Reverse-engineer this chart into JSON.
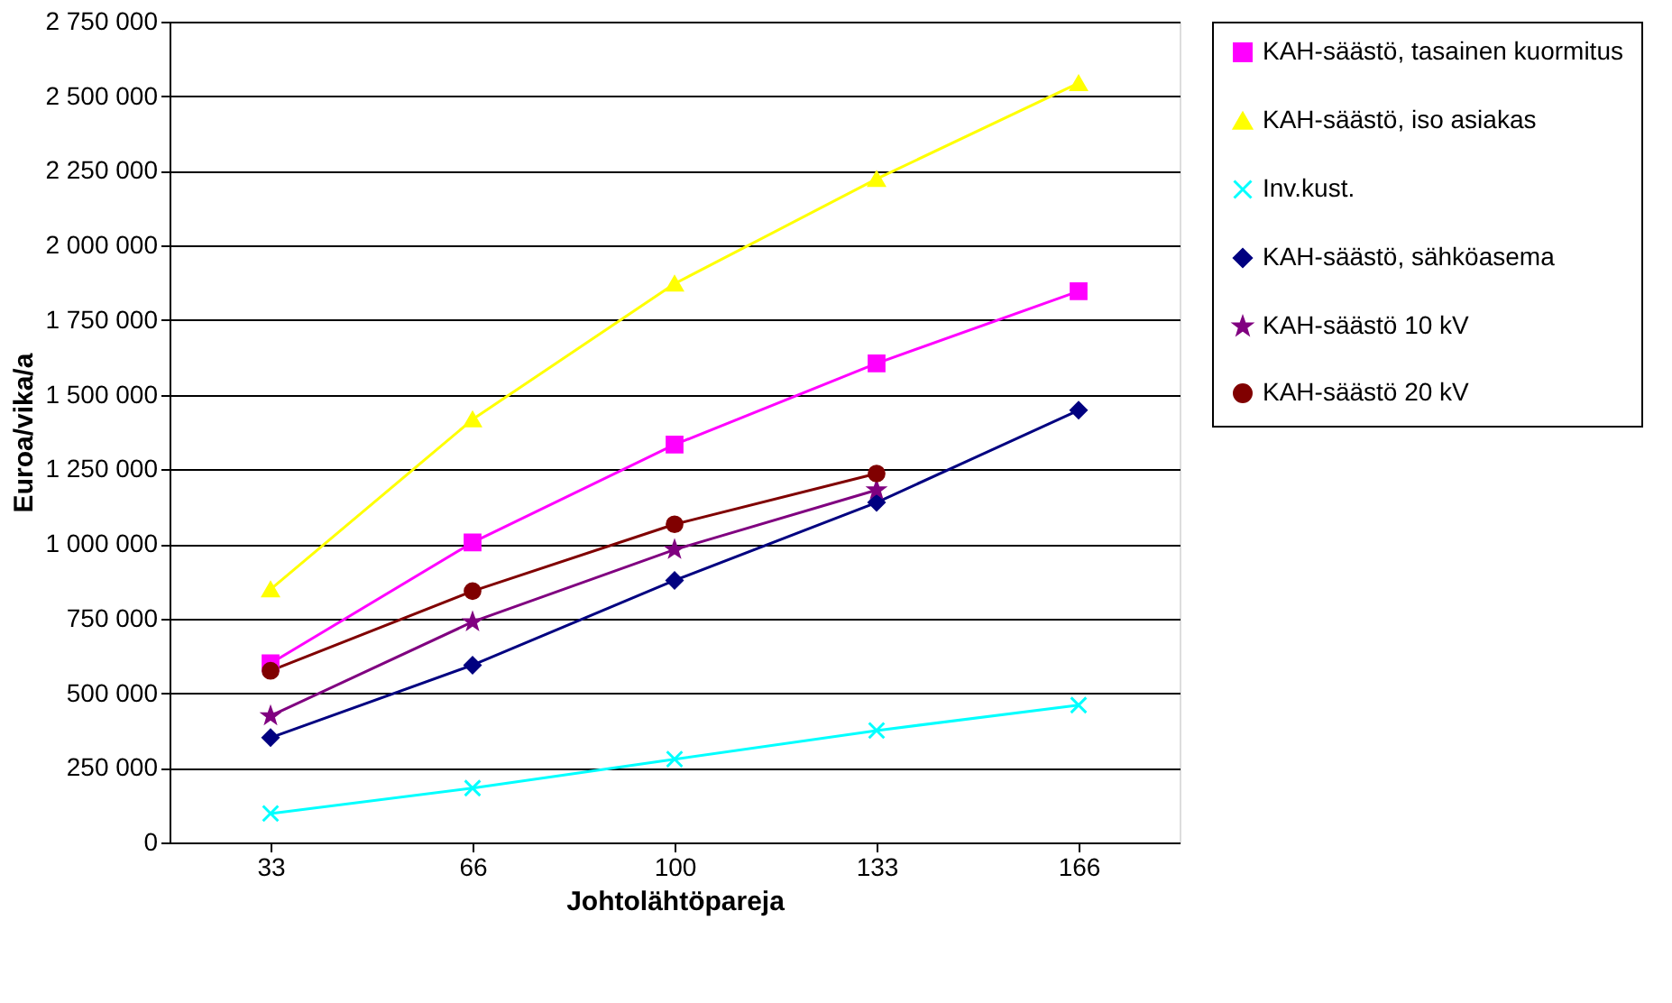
{
  "chart_data": {
    "type": "line",
    "xlabel": "Johtolähtöpareja",
    "ylabel": "Euroa/vika/a",
    "categories": [
      "33",
      "66",
      "100",
      "133",
      "166"
    ],
    "ylim": [
      0,
      2750000
    ],
    "yticks": [
      {
        "value": 0,
        "label": "0"
      },
      {
        "value": 250000,
        "label": "250 000"
      },
      {
        "value": 500000,
        "label": "500 000"
      },
      {
        "value": 750000,
        "label": "750 000"
      },
      {
        "value": 1000000,
        "label": "1 000 000"
      },
      {
        "value": 1250000,
        "label": "1 250 000"
      },
      {
        "value": 1500000,
        "label": "1 500 000"
      },
      {
        "value": 1750000,
        "label": "1 750 000"
      },
      {
        "value": 2000000,
        "label": "2 000 000"
      },
      {
        "value": 2250000,
        "label": "2 250 000"
      },
      {
        "value": 2500000,
        "label": "2 500 000"
      },
      {
        "value": 2750000,
        "label": "2 750 000"
      }
    ],
    "grid": "y",
    "legend": "right",
    "line_style": "solid",
    "series": [
      {
        "name": "KAH-säästö, tasainen kuormitus",
        "color": "#ff00ff",
        "marker": "square",
        "values": [
          600000,
          1005000,
          1333000,
          1605000,
          1847000
        ]
      },
      {
        "name": "KAH-säästö, iso asiakas",
        "color": "#ffff00",
        "marker": "triangle",
        "values": [
          848000,
          1417000,
          1872000,
          2223000,
          2544000
        ]
      },
      {
        "name": "Inv.kust.",
        "color": "#00ffff",
        "marker": "cross",
        "values": [
          97000,
          182000,
          279000,
          375000,
          460000
        ]
      },
      {
        "name": "KAH-säästö, sähköasema",
        "color": "#000080",
        "marker": "diamond",
        "values": [
          351000,
          594000,
          878000,
          1139000,
          1448000
        ]
      },
      {
        "name": "KAH-säästö 10 kV",
        "color": "#800080",
        "marker": "star",
        "values": [
          424000,
          739000,
          981000,
          1181000,
          null
        ]
      },
      {
        "name": "KAH-säästö 20 kV",
        "color": "#800000",
        "marker": "circle",
        "values": [
          575000,
          842000,
          1066000,
          1236000,
          null
        ]
      }
    ]
  }
}
